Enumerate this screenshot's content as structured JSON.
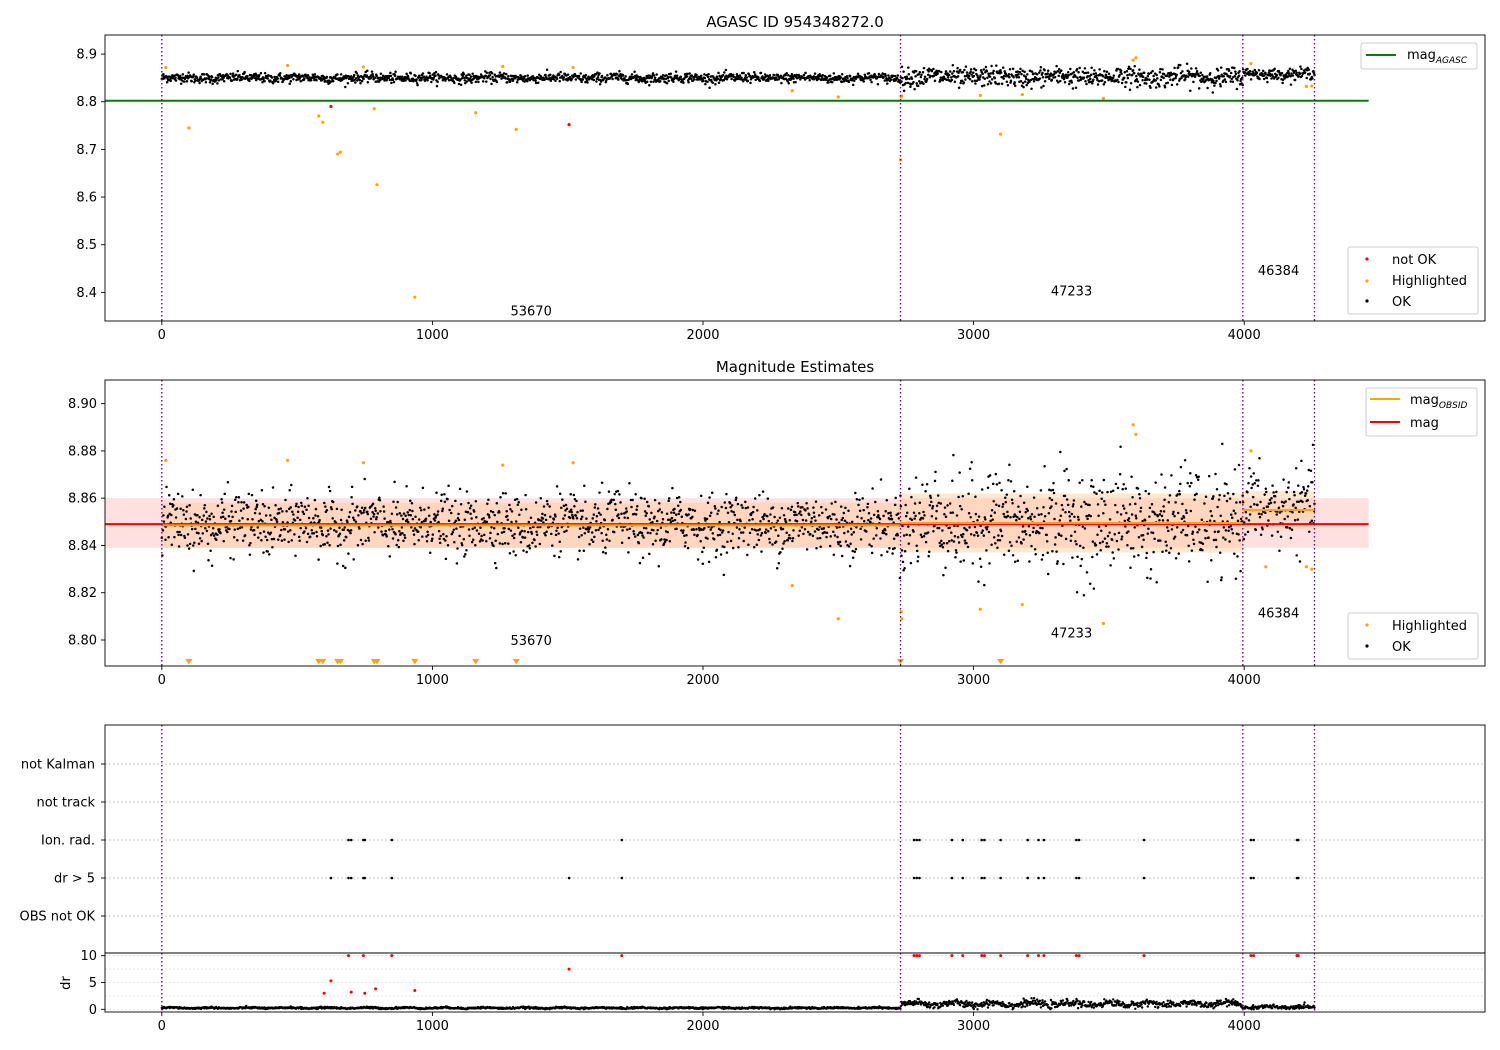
{
  "chart_data": [
    {
      "type": "scatter",
      "title": "AGASC ID 954348272.0",
      "xlim": [
        -210,
        4890
      ],
      "ylim": [
        8.34,
        8.94
      ],
      "xticks": [
        0,
        1000,
        2000,
        3000,
        4000
      ],
      "xtick_labels": [
        "0",
        "1000",
        "2000",
        "3000",
        "4000"
      ],
      "yticks": [
        8.4,
        8.5,
        8.6,
        8.7,
        8.8,
        8.9
      ],
      "ytick_labels": [
        "8.4",
        "8.5",
        "8.6",
        "8.7",
        "8.8",
        "8.9"
      ],
      "obsid_boundaries": [
        0,
        2730,
        3995,
        4260
      ],
      "obsid_labels": [
        {
          "text": "53670",
          "x": 1365,
          "y": 8.36
        },
        {
          "text": "47233",
          "x": 3362,
          "y": 8.402
        },
        {
          "text": "46384",
          "x": 4127,
          "y": 8.445
        }
      ],
      "reference_line": {
        "name": "mag_AGASC",
        "value": 8.802,
        "x": [
          -210,
          4460
        ],
        "color": "#008000"
      },
      "ok_series": {
        "name": "OK",
        "color": "#000000",
        "x_range": [
          0,
          4260
        ],
        "n_points": 2200,
        "segments": [
          {
            "x": [
              0,
              2730
            ],
            "mean": 8.85,
            "spread": 0.006
          },
          {
            "x": [
              2730,
              3995
            ],
            "mean": 8.852,
            "spread": 0.012
          },
          {
            "x": [
              3995,
              4260
            ],
            "mean": 8.858,
            "spread": 0.007
          }
        ]
      },
      "highlighted_series": {
        "name": "Highlighted",
        "color": "#ffa500",
        "x": [
          15,
          100,
          465,
          580,
          595,
          650,
          660,
          745,
          785,
          795,
          935,
          1160,
          1260,
          1310,
          1520,
          2330,
          2500,
          2730,
          2732,
          2735,
          3025,
          3100,
          3180,
          3480,
          3590,
          3600,
          4025,
          4230,
          4250
        ],
        "y": [
          8.872,
          8.745,
          8.876,
          8.77,
          8.757,
          8.69,
          8.694,
          8.873,
          8.785,
          8.626,
          8.39,
          8.777,
          8.874,
          8.742,
          8.872,
          8.823,
          8.81,
          8.678,
          8.81,
          8.812,
          8.813,
          8.732,
          8.815,
          8.807,
          8.887,
          8.892,
          8.88,
          8.832,
          8.833
        ]
      },
      "not_ok_series": {
        "name": "not OK",
        "color": "#ff0000",
        "x": [
          625,
          1505
        ],
        "y": [
          8.79,
          8.752
        ]
      },
      "legend_upper": {
        "entries": [
          "mag_AGASC"
        ],
        "placement": "top-right"
      },
      "legend_lower": {
        "entries": [
          "not OK",
          "Highlighted",
          "OK"
        ],
        "placement": "bottom-right"
      }
    },
    {
      "type": "scatter",
      "title": "Magnitude Estimates",
      "xlim": [
        -210,
        4890
      ],
      "ylim": [
        8.789,
        8.91
      ],
      "xticks": [
        0,
        1000,
        2000,
        3000,
        4000
      ],
      "xtick_labels": [
        "0",
        "1000",
        "2000",
        "3000",
        "4000"
      ],
      "yticks": [
        8.8,
        8.82,
        8.84,
        8.86,
        8.88,
        8.9
      ],
      "ytick_labels": [
        "8.80",
        "8.82",
        "8.84",
        "8.86",
        "8.88",
        "8.90"
      ],
      "obsid_boundaries": [
        0,
        2730,
        3995,
        4260
      ],
      "obsid_labels": [
        {
          "text": "53670",
          "x": 1365,
          "y": 8.7995
        },
        {
          "text": "47233",
          "x": 3362,
          "y": 8.8027
        },
        {
          "text": "46384",
          "x": 4127,
          "y": 8.8112
        }
      ],
      "mag_line": {
        "name": "mag",
        "value": 8.849,
        "band": [
          8.839,
          8.86
        ],
        "x": [
          -210,
          4460
        ],
        "color": "#ff0000",
        "band_color": "#ffd6d6"
      },
      "obsid_mags": {
        "name": "mag_OBSID",
        "color": "#ffa500",
        "band_color": "#ffcc99",
        "segments": [
          {
            "x": [
              0,
              2730
            ],
            "value": 8.8485,
            "band": [
              8.839,
              8.858
            ]
          },
          {
            "x": [
              2730,
              3995
            ],
            "value": 8.8495,
            "band": [
              8.837,
              8.862
            ]
          },
          {
            "x": [
              3995,
              4260
            ],
            "value": 8.855,
            "band": [
              8.847,
              8.863
            ]
          }
        ]
      },
      "ok_series": {
        "name": "OK",
        "color": "#000000",
        "x_range": [
          0,
          4260
        ],
        "n_points": 2200,
        "segments": [
          {
            "x": [
              0,
              2730
            ],
            "mean": 8.849,
            "spread": 0.0075
          },
          {
            "x": [
              2730,
              3995
            ],
            "mean": 8.85,
            "spread": 0.012
          },
          {
            "x": [
              3995,
              4260
            ],
            "mean": 8.856,
            "spread": 0.009
          }
        ]
      },
      "highlighted_series": {
        "name": "Highlighted",
        "color": "#ffa500",
        "x": [
          15,
          465,
          745,
          1260,
          1520,
          2330,
          2500,
          2732,
          2735,
          3025,
          3180,
          3480,
          3590,
          3600,
          4025,
          4080,
          4230,
          4250
        ],
        "y": [
          8.876,
          8.876,
          8.875,
          8.874,
          8.875,
          8.823,
          8.809,
          8.812,
          8.809,
          8.813,
          8.815,
          8.807,
          8.891,
          8.887,
          8.88,
          8.831,
          8.831,
          8.83
        ]
      },
      "below_range_markers": {
        "color": "#ffa500",
        "x": [
          100,
          580,
          595,
          650,
          660,
          785,
          795,
          935,
          1160,
          1310,
          2730,
          3100
        ]
      },
      "legend_upper": {
        "entries": [
          "mag_OBSID",
          "mag"
        ],
        "placement": "top-right"
      },
      "legend_lower": {
        "entries": [
          "Highlighted",
          "OK"
        ],
        "placement": "bottom-right"
      }
    },
    {
      "type": "scatter",
      "title": "",
      "xlim": [
        -210,
        4890
      ],
      "categories": [
        "not Kalman",
        "not track",
        "Ion. rad.",
        "dr > 5",
        "OBS not OK"
      ],
      "obsid_boundaries": [
        0,
        2730,
        3995,
        4260
      ],
      "flags": {
        "Ion. rad.": [
          690,
          700,
          745,
          750,
          850,
          1700,
          2780,
          2790,
          2800,
          2920,
          2960,
          3030,
          3040,
          3100,
          3200,
          3240,
          3260,
          3380,
          3390,
          3630,
          4025,
          4035,
          4195,
          4200
        ],
        "dr > 5": [
          625,
          690,
          700,
          745,
          750,
          850,
          1505,
          1700,
          2780,
          2790,
          2800,
          2920,
          2960,
          3030,
          3040,
          3100,
          3200,
          3240,
          3260,
          3380,
          3390,
          3630,
          4025,
          4035,
          4195,
          4200
        ],
        "not Kalman": [],
        "not track": [],
        "OBS not OK": []
      }
    },
    {
      "type": "scatter",
      "ylabel": "dr",
      "xlim": [
        -210,
        4890
      ],
      "ylim": [
        -0.5,
        10.5
      ],
      "xticks": [
        0,
        1000,
        2000,
        3000,
        4000
      ],
      "xtick_labels": [
        "0",
        "1000",
        "2000",
        "3000",
        "4000"
      ],
      "yticks": [
        0,
        5,
        10
      ],
      "ytick_labels": [
        "0",
        "5",
        "10"
      ],
      "obsid_boundaries": [
        0,
        2730,
        3995,
        4260
      ],
      "baseline_segments": [
        {
          "x": [
            0,
            2730
          ],
          "level": 0.25,
          "spread": 0.12
        },
        {
          "x": [
            2730,
            3995
          ],
          "level": 1.0,
          "spread": 0.45
        },
        {
          "x": [
            3995,
            4260
          ],
          "level": 0.4,
          "spread": 0.25
        }
      ],
      "outliers": {
        "color": "#ff0000",
        "x": [
          600,
          625,
          690,
          700,
          745,
          750,
          790,
          850,
          935,
          1505,
          1700,
          2780,
          2790,
          2800,
          2920,
          2960,
          3030,
          3040,
          3100,
          3200,
          3240,
          3260,
          3380,
          3390,
          3630,
          4025,
          4035,
          4195,
          4200
        ],
        "y": [
          3.0,
          5.3,
          10,
          3.2,
          10,
          3.0,
          3.8,
          10,
          3.5,
          7.5,
          10,
          10,
          10,
          10,
          10,
          10,
          10,
          10,
          10,
          10,
          10,
          10,
          10,
          10,
          10,
          10,
          10,
          10,
          10
        ]
      }
    }
  ]
}
